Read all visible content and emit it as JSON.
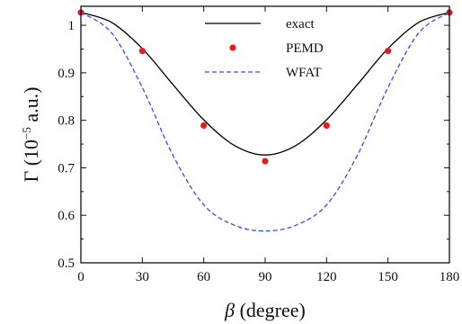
{
  "chart_data": {
    "type": "line",
    "xlabel_symbol": "β",
    "xlabel_text": " (degree)",
    "ylabel_symbol": "Γ",
    "ylabel_prefix": " (10",
    "ylabel_exp": "−5",
    "ylabel_suffix": " a.u.)",
    "xlim": [
      0,
      180
    ],
    "ylim": [
      0.5,
      1.04
    ],
    "xticks": [
      0,
      30,
      60,
      90,
      120,
      150,
      180
    ],
    "xtick_labels": [
      "0",
      "30",
      "60",
      "90",
      "120",
      "150",
      "180"
    ],
    "yticks": [
      0.5,
      0.6,
      0.7,
      0.8,
      0.9,
      1.0
    ],
    "ytick_labels": [
      "0.5",
      "0.6",
      "0.7",
      "0.8",
      "0.9",
      "1"
    ],
    "grid": false,
    "legend_position": "top-center",
    "series": [
      {
        "name": "exact",
        "style": "solid-line",
        "color": "#000000",
        "x": [
          0,
          15,
          30,
          45,
          60,
          75,
          90,
          105,
          120,
          135,
          150,
          165,
          180
        ],
        "y": [
          1.027,
          1.006,
          0.951,
          0.875,
          0.801,
          0.747,
          0.727,
          0.747,
          0.801,
          0.875,
          0.951,
          1.006,
          1.027
        ]
      },
      {
        "name": "PEMD",
        "style": "markers",
        "color": "#e02020",
        "x": [
          0,
          30,
          60,
          90,
          120,
          150,
          180
        ],
        "y": [
          1.027,
          0.946,
          0.789,
          0.714,
          0.789,
          0.946,
          1.027
        ]
      },
      {
        "name": "WFAT",
        "style": "dashed-line",
        "color": "#3a4fd0",
        "x": [
          0,
          15,
          30,
          45,
          60,
          75,
          90,
          105,
          120,
          135,
          150,
          165,
          180
        ],
        "y": [
          1.027,
          0.984,
          0.869,
          0.726,
          0.622,
          0.579,
          0.567,
          0.579,
          0.622,
          0.726,
          0.869,
          0.984,
          1.027
        ]
      }
    ]
  }
}
